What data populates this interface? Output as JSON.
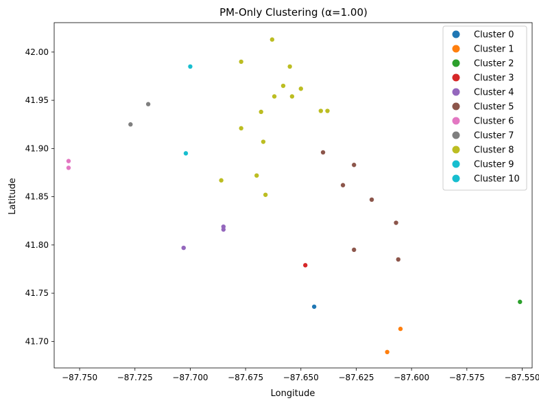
{
  "chart_data": {
    "type": "scatter",
    "title": "PM-Only Clustering (α=1.00)",
    "xlabel": "Longitude",
    "ylabel": "Latitude",
    "xlim": [
      -87.7615,
      -87.5455
    ],
    "ylim": [
      41.6725,
      42.0305
    ],
    "xticks": [
      -87.75,
      -87.725,
      -87.7,
      -87.675,
      -87.65,
      -87.625,
      -87.6,
      -87.575,
      -87.55
    ],
    "xtick_labels": [
      "−87.750",
      "−87.725",
      "−87.700",
      "−87.675",
      "−87.650",
      "−87.625",
      "−87.600",
      "−87.575",
      "−87.550"
    ],
    "yticks": [
      41.7,
      41.75,
      41.8,
      41.85,
      41.9,
      41.95,
      42.0
    ],
    "ytick_labels": [
      "41.70",
      "41.75",
      "41.80",
      "41.85",
      "41.90",
      "41.95",
      "42.00"
    ],
    "grid": false,
    "legend_position": "top-right",
    "series": [
      {
        "name": "Cluster 0",
        "color": "#1f77b4",
        "points": [
          [
            -87.644,
            41.736
          ]
        ]
      },
      {
        "name": "Cluster 1",
        "color": "#ff7f0e",
        "points": [
          [
            -87.605,
            41.713
          ],
          [
            -87.611,
            41.689
          ]
        ]
      },
      {
        "name": "Cluster 2",
        "color": "#2ca02c",
        "points": [
          [
            -87.551,
            41.741
          ]
        ]
      },
      {
        "name": "Cluster 3",
        "color": "#d62728",
        "points": [
          [
            -87.648,
            41.779
          ]
        ]
      },
      {
        "name": "Cluster 4",
        "color": "#9467bd",
        "points": [
          [
            -87.685,
            41.819
          ],
          [
            -87.685,
            41.816
          ],
          [
            -87.703,
            41.797
          ]
        ]
      },
      {
        "name": "Cluster 5",
        "color": "#8c564b",
        "points": [
          [
            -87.64,
            41.896
          ],
          [
            -87.626,
            41.883
          ],
          [
            -87.631,
            41.862
          ],
          [
            -87.618,
            41.847
          ],
          [
            -87.607,
            41.823
          ],
          [
            -87.626,
            41.795
          ],
          [
            -87.606,
            41.785
          ]
        ]
      },
      {
        "name": "Cluster 6",
        "color": "#e377c2",
        "points": [
          [
            -87.755,
            41.887
          ],
          [
            -87.755,
            41.88
          ]
        ]
      },
      {
        "name": "Cluster 7",
        "color": "#7f7f7f",
        "points": [
          [
            -87.719,
            41.946
          ],
          [
            -87.727,
            41.925
          ]
        ]
      },
      {
        "name": "Cluster 8",
        "color": "#bcbd22",
        "points": [
          [
            -87.663,
            42.013
          ],
          [
            -87.677,
            41.99
          ],
          [
            -87.655,
            41.985
          ],
          [
            -87.658,
            41.965
          ],
          [
            -87.65,
            41.962
          ],
          [
            -87.662,
            41.954
          ],
          [
            -87.654,
            41.954
          ],
          [
            -87.641,
            41.939
          ],
          [
            -87.638,
            41.939
          ],
          [
            -87.668,
            41.938
          ],
          [
            -87.677,
            41.921
          ],
          [
            -87.667,
            41.907
          ],
          [
            -87.686,
            41.867
          ],
          [
            -87.67,
            41.872
          ],
          [
            -87.666,
            41.852
          ]
        ]
      },
      {
        "name": "Cluster 9",
        "color": "#17becf",
        "points": [
          [
            -87.702,
            41.895
          ]
        ]
      },
      {
        "name": "Cluster 10",
        "color": "#17becf",
        "points": [
          [
            -87.7,
            41.985
          ]
        ]
      }
    ]
  }
}
